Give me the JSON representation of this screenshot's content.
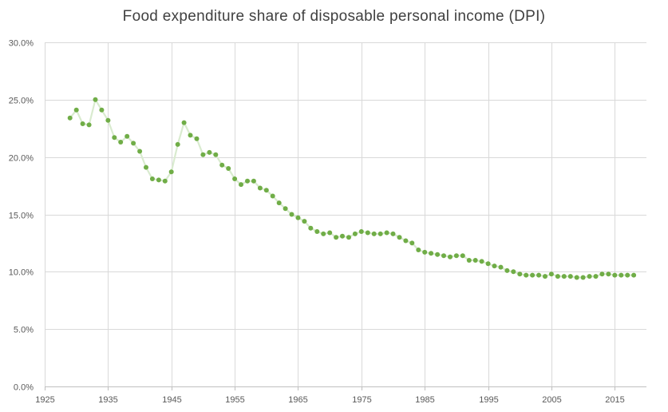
{
  "chart_data": {
    "type": "scatter",
    "title": "Food expenditure share of disposable personal income (DPI)",
    "xlabel": "",
    "ylabel": "",
    "xlim": [
      1925,
      2020
    ],
    "ylim": [
      0,
      0.3
    ],
    "grid": true,
    "x_ticks": [
      1925,
      1935,
      1945,
      1955,
      1965,
      1975,
      1985,
      1995,
      2005,
      2015
    ],
    "x_tick_labels": [
      "1925",
      "1935",
      "1945",
      "1955",
      "1965",
      "1975",
      "1985",
      "1995",
      "2005",
      "2015"
    ],
    "y_ticks": [
      0,
      0.05,
      0.1,
      0.15,
      0.2,
      0.25,
      0.3
    ],
    "y_tick_labels": [
      "0.0%",
      "5.0%",
      "10.0%",
      "15.0%",
      "20.0%",
      "25.0%",
      "30.0%"
    ],
    "colors": {
      "marker": "#70ad47",
      "connector": "#d9ebcf",
      "grid": "#d9d9d9",
      "axis": "#bfbfbf"
    },
    "series": [
      {
        "x": [
          1929,
          1930,
          1931,
          1932,
          1933,
          1934,
          1935,
          1936,
          1937,
          1938,
          1939,
          1940,
          1941,
          1942,
          1943,
          1944,
          1945,
          1946,
          1947,
          1948,
          1949,
          1950,
          1951,
          1952,
          1953,
          1954,
          1955,
          1956,
          1957,
          1958,
          1959,
          1960,
          1961,
          1962,
          1963,
          1964,
          1965,
          1966,
          1967,
          1968,
          1969,
          1970,
          1971,
          1972,
          1973,
          1974,
          1975,
          1976,
          1977,
          1978,
          1979,
          1980,
          1981,
          1982,
          1983,
          1984,
          1985,
          1986,
          1987,
          1988,
          1989,
          1990,
          1991,
          1992,
          1993,
          1994,
          1995,
          1996,
          1997,
          1998,
          1999,
          2000,
          2001,
          2002,
          2003,
          2004,
          2005,
          2006,
          2007,
          2008,
          2009,
          2010,
          2011,
          2012,
          2013,
          2014,
          2015,
          2016,
          2017,
          2018
        ],
        "y": [
          0.234,
          0.241,
          0.229,
          0.228,
          0.25,
          0.241,
          0.232,
          0.217,
          0.213,
          0.218,
          0.212,
          0.205,
          0.191,
          0.181,
          0.18,
          0.179,
          0.187,
          0.211,
          0.23,
          0.219,
          0.216,
          0.202,
          0.204,
          0.202,
          0.193,
          0.19,
          0.181,
          0.176,
          0.179,
          0.179,
          0.173,
          0.171,
          0.166,
          0.16,
          0.155,
          0.15,
          0.147,
          0.144,
          0.138,
          0.135,
          0.133,
          0.134,
          0.13,
          0.131,
          0.13,
          0.133,
          0.135,
          0.134,
          0.133,
          0.133,
          0.134,
          0.133,
          0.13,
          0.127,
          0.125,
          0.119,
          0.117,
          0.116,
          0.115,
          0.114,
          0.113,
          0.114,
          0.114,
          0.11,
          0.11,
          0.109,
          0.107,
          0.105,
          0.104,
          0.101,
          0.1,
          0.098,
          0.097,
          0.097,
          0.097,
          0.096,
          0.098,
          0.096,
          0.096,
          0.096,
          0.095,
          0.095,
          0.096,
          0.096,
          0.098,
          0.098,
          0.097,
          0.097,
          0.097,
          0.097
        ]
      }
    ]
  }
}
